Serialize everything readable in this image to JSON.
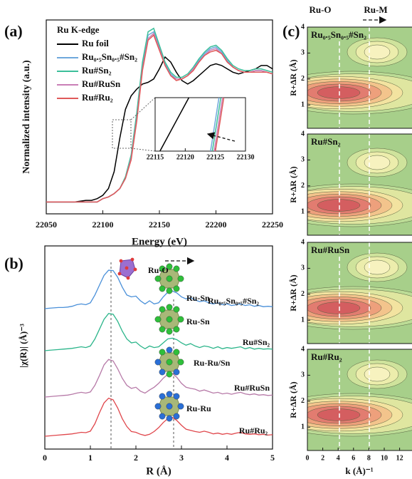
{
  "chart_data": [
    {
      "type": "line",
      "panel_label": "(a)",
      "legend_title": "Ru K-edge",
      "xlabel": "Energy (eV)",
      "ylabel": "Normalized intensity (a.u.)",
      "x": [
        22050,
        22055,
        22060,
        22065,
        22070,
        22075,
        22080,
        22085,
        22090,
        22095,
        22100,
        22105,
        22110,
        22115,
        22120,
        22125,
        22130,
        22135,
        22140,
        22145,
        22150,
        22155,
        22160,
        22165,
        22170,
        22175,
        22180,
        22185,
        22190,
        22195,
        22200,
        22205,
        22210,
        22215,
        22220,
        22225,
        22230,
        22235,
        22240,
        22245,
        22250
      ],
      "xlim": [
        22050,
        22250
      ],
      "xticks": [
        22050,
        22100,
        22150,
        22200,
        22250
      ],
      "ylim": [
        0,
        1.15
      ],
      "legend": "upper left",
      "series": [
        {
          "name": "Ru foil",
          "color": "#000000",
          "values": [
            0.07,
            0.07,
            0.07,
            0.07,
            0.07,
            0.07,
            0.075,
            0.08,
            0.08,
            0.09,
            0.11,
            0.15,
            0.25,
            0.45,
            0.62,
            0.7,
            0.74,
            0.77,
            0.78,
            0.8,
            0.86,
            0.93,
            0.9,
            0.84,
            0.79,
            0.77,
            0.79,
            0.82,
            0.85,
            0.88,
            0.89,
            0.88,
            0.86,
            0.84,
            0.83,
            0.84,
            0.85,
            0.86,
            0.88,
            0.88,
            0.86
          ]
        },
        {
          "name": "Ru₀.₅Sn₀.₅#Sn₂",
          "color": "#6fa8dc",
          "values": [
            0.07,
            0.07,
            0.07,
            0.07,
            0.07,
            0.07,
            0.07,
            0.07,
            0.07,
            0.07,
            0.09,
            0.1,
            0.12,
            0.15,
            0.21,
            0.33,
            0.57,
            0.88,
            1.06,
            1.08,
            0.99,
            0.89,
            0.83,
            0.8,
            0.8,
            0.82,
            0.86,
            0.91,
            0.95,
            0.98,
            0.99,
            0.96,
            0.91,
            0.87,
            0.85,
            0.84,
            0.84,
            0.85,
            0.85,
            0.84,
            0.83
          ]
        },
        {
          "name": "Ru#Sn₂",
          "color": "#3cbf9a",
          "values": [
            0.07,
            0.07,
            0.07,
            0.07,
            0.07,
            0.07,
            0.07,
            0.07,
            0.07,
            0.07,
            0.09,
            0.1,
            0.12,
            0.15,
            0.22,
            0.35,
            0.6,
            0.9,
            1.08,
            1.1,
            1.0,
            0.9,
            0.84,
            0.81,
            0.81,
            0.83,
            0.87,
            0.92,
            0.96,
            0.99,
            1.0,
            0.97,
            0.92,
            0.88,
            0.86,
            0.85,
            0.85,
            0.86,
            0.86,
            0.85,
            0.84
          ]
        },
        {
          "name": "Ru#RuSn",
          "color": "#c97fb6",
          "values": [
            0.07,
            0.07,
            0.07,
            0.07,
            0.07,
            0.07,
            0.07,
            0.07,
            0.07,
            0.07,
            0.09,
            0.1,
            0.12,
            0.15,
            0.21,
            0.33,
            0.56,
            0.86,
            1.04,
            1.07,
            0.98,
            0.88,
            0.82,
            0.8,
            0.8,
            0.82,
            0.86,
            0.9,
            0.94,
            0.97,
            0.98,
            0.95,
            0.9,
            0.87,
            0.85,
            0.84,
            0.84,
            0.85,
            0.85,
            0.84,
            0.83
          ]
        },
        {
          "name": "Ru#Ru₂",
          "color": "#e05a5a",
          "values": [
            0.07,
            0.07,
            0.07,
            0.07,
            0.07,
            0.07,
            0.07,
            0.07,
            0.07,
            0.07,
            0.09,
            0.1,
            0.12,
            0.15,
            0.21,
            0.32,
            0.55,
            0.85,
            1.03,
            1.06,
            0.97,
            0.88,
            0.82,
            0.79,
            0.8,
            0.82,
            0.85,
            0.9,
            0.94,
            0.96,
            0.97,
            0.95,
            0.9,
            0.87,
            0.85,
            0.84,
            0.84,
            0.84,
            0.84,
            0.84,
            0.83
          ]
        }
      ]
    },
    {
      "type": "line",
      "xlim": [
        22115,
        22130
      ],
      "xticks": [
        22115,
        22120,
        22125,
        22130
      ],
      "ylim": [
        0,
        1
      ],
      "series": [
        {
          "color": "#000000",
          "x": [
            22115.8,
            22120.6
          ],
          "values": [
            0,
            1
          ]
        },
        {
          "color": "#6fa8dc",
          "x": [
            22124.2,
            22125.6
          ],
          "values": [
            0,
            1
          ]
        },
        {
          "color": "#3cbf9a",
          "x": [
            22124.5,
            22125.9
          ],
          "values": [
            0,
            1
          ]
        },
        {
          "color": "#c97fb6",
          "x": [
            22124.8,
            22126.2
          ],
          "values": [
            0,
            1
          ]
        },
        {
          "color": "#e05a5a",
          "x": [
            22125.0,
            22126.4
          ],
          "values": [
            0,
            1
          ]
        }
      ]
    },
    {
      "type": "line",
      "panel_label": "(b)",
      "xlabel": "R (Å)",
      "ylabel": "|χ(R)| (Å)⁻³",
      "x": [
        0,
        0.1,
        0.2,
        0.3,
        0.4,
        0.5,
        0.6,
        0.7,
        0.8,
        0.9,
        1.0,
        1.1,
        1.2,
        1.3,
        1.4,
        1.5,
        1.6,
        1.7,
        1.8,
        1.9,
        2.0,
        2.1,
        2.2,
        2.3,
        2.4,
        2.5,
        2.6,
        2.7,
        2.8,
        2.9,
        3.0,
        3.1,
        3.2,
        3.3,
        3.4,
        3.5,
        3.6,
        3.7,
        3.8,
        3.9,
        4.0,
        4.1,
        4.2,
        4.3,
        4.4,
        4.5,
        4.6,
        4.7,
        4.8,
        4.9,
        5.0
      ],
      "xlim": [
        0,
        5
      ],
      "xticks": [
        0,
        1,
        2,
        3,
        4,
        5
      ],
      "ylim": [
        0,
        1
      ],
      "annotations": [
        "Ru-O",
        "Ru-Sn",
        "Ru-Sn",
        "Ru-Ru/Sn",
        "Ru-Ru"
      ],
      "series": [
        {
          "name": "Ru₀.₅Sn₀.₅#Sn₂",
          "color": "#4a90d9",
          "values": [
            0,
            0.01,
            0.02,
            0.03,
            0.03,
            0.04,
            0.06,
            0.1,
            0.12,
            0.1,
            0.15,
            0.35,
            0.6,
            0.85,
            0.98,
            0.97,
            0.8,
            0.55,
            0.35,
            0.3,
            0.32,
            0.2,
            0.12,
            0.2,
            0.12,
            0.15,
            0.3,
            0.42,
            0.45,
            0.4,
            0.3,
            0.25,
            0.28,
            0.22,
            0.18,
            0.2,
            0.15,
            0.12,
            0.15,
            0.1,
            0.12,
            0.08,
            0.1,
            0.12,
            0.08,
            0.1,
            0.06,
            0.08,
            0.05,
            0.06,
            0.05
          ]
        },
        {
          "name": "Ru#Sn₂",
          "color": "#2bb58a",
          "values": [
            0,
            0.01,
            0.02,
            0.03,
            0.04,
            0.05,
            0.06,
            0.08,
            0.1,
            0.08,
            0.12,
            0.3,
            0.55,
            0.8,
            0.95,
            0.93,
            0.75,
            0.5,
            0.3,
            0.2,
            0.22,
            0.12,
            0.05,
            0.12,
            0.08,
            0.1,
            0.2,
            0.3,
            0.32,
            0.28,
            0.2,
            0.14,
            0.18,
            0.12,
            0.08,
            0.12,
            0.1,
            0.06,
            0.1,
            0.05,
            0.08,
            0.06,
            0.08,
            0.1,
            0.05,
            0.08,
            0.04,
            0.06,
            0.04,
            0.05,
            0.04
          ]
        },
        {
          "name": "Ru#RuSn",
          "color": "#b77aa8",
          "values": [
            0,
            0.01,
            0.02,
            0.03,
            0.04,
            0.05,
            0.07,
            0.1,
            0.12,
            0.1,
            0.13,
            0.3,
            0.55,
            0.82,
            0.96,
            0.92,
            0.72,
            0.48,
            0.3,
            0.22,
            0.25,
            0.15,
            0.1,
            0.18,
            0.25,
            0.35,
            0.48,
            0.58,
            0.6,
            0.5,
            0.35,
            0.25,
            0.22,
            0.2,
            0.15,
            0.18,
            0.14,
            0.1,
            0.12,
            0.08,
            0.1,
            0.07,
            0.1,
            0.12,
            0.08,
            0.06,
            0.08,
            0.05,
            0.06,
            0.04,
            0.05
          ]
        },
        {
          "name": "Ru#Ru₂",
          "color": "#e0474c",
          "values": [
            0,
            0.01,
            0.02,
            0.03,
            0.04,
            0.05,
            0.06,
            0.08,
            0.1,
            0.09,
            0.13,
            0.32,
            0.6,
            0.85,
            0.97,
            0.93,
            0.72,
            0.45,
            0.25,
            0.12,
            0.1,
            0.05,
            0.02,
            0.05,
            0.12,
            0.22,
            0.35,
            0.45,
            0.48,
            0.4,
            0.28,
            0.18,
            0.15,
            0.12,
            0.1,
            0.13,
            0.1,
            0.06,
            0.08,
            0.05,
            0.07,
            0.05,
            0.08,
            0.1,
            0.06,
            0.05,
            0.06,
            0.04,
            0.05,
            0.03,
            0.04
          ]
        }
      ]
    },
    {
      "type": "contour",
      "panel_label": "(c)",
      "xlabel": "k (Å)⁻¹",
      "ylabel": "R+ΔR (Å)",
      "annotations": [
        "Ru-O",
        "Ru-M"
      ],
      "panels": [
        "Ru₀.₅Sn₀.₅#Sn₂",
        "Ru#Sn₂",
        "Ru#RuSn",
        "Ru#Ru₂"
      ],
      "xlim": [
        0,
        14
      ],
      "xticks": [
        0,
        2,
        4,
        6,
        8,
        10,
        12
      ],
      "ylim": [
        0.1,
        4
      ],
      "yticks": [
        1,
        2,
        3,
        4
      ]
    }
  ]
}
